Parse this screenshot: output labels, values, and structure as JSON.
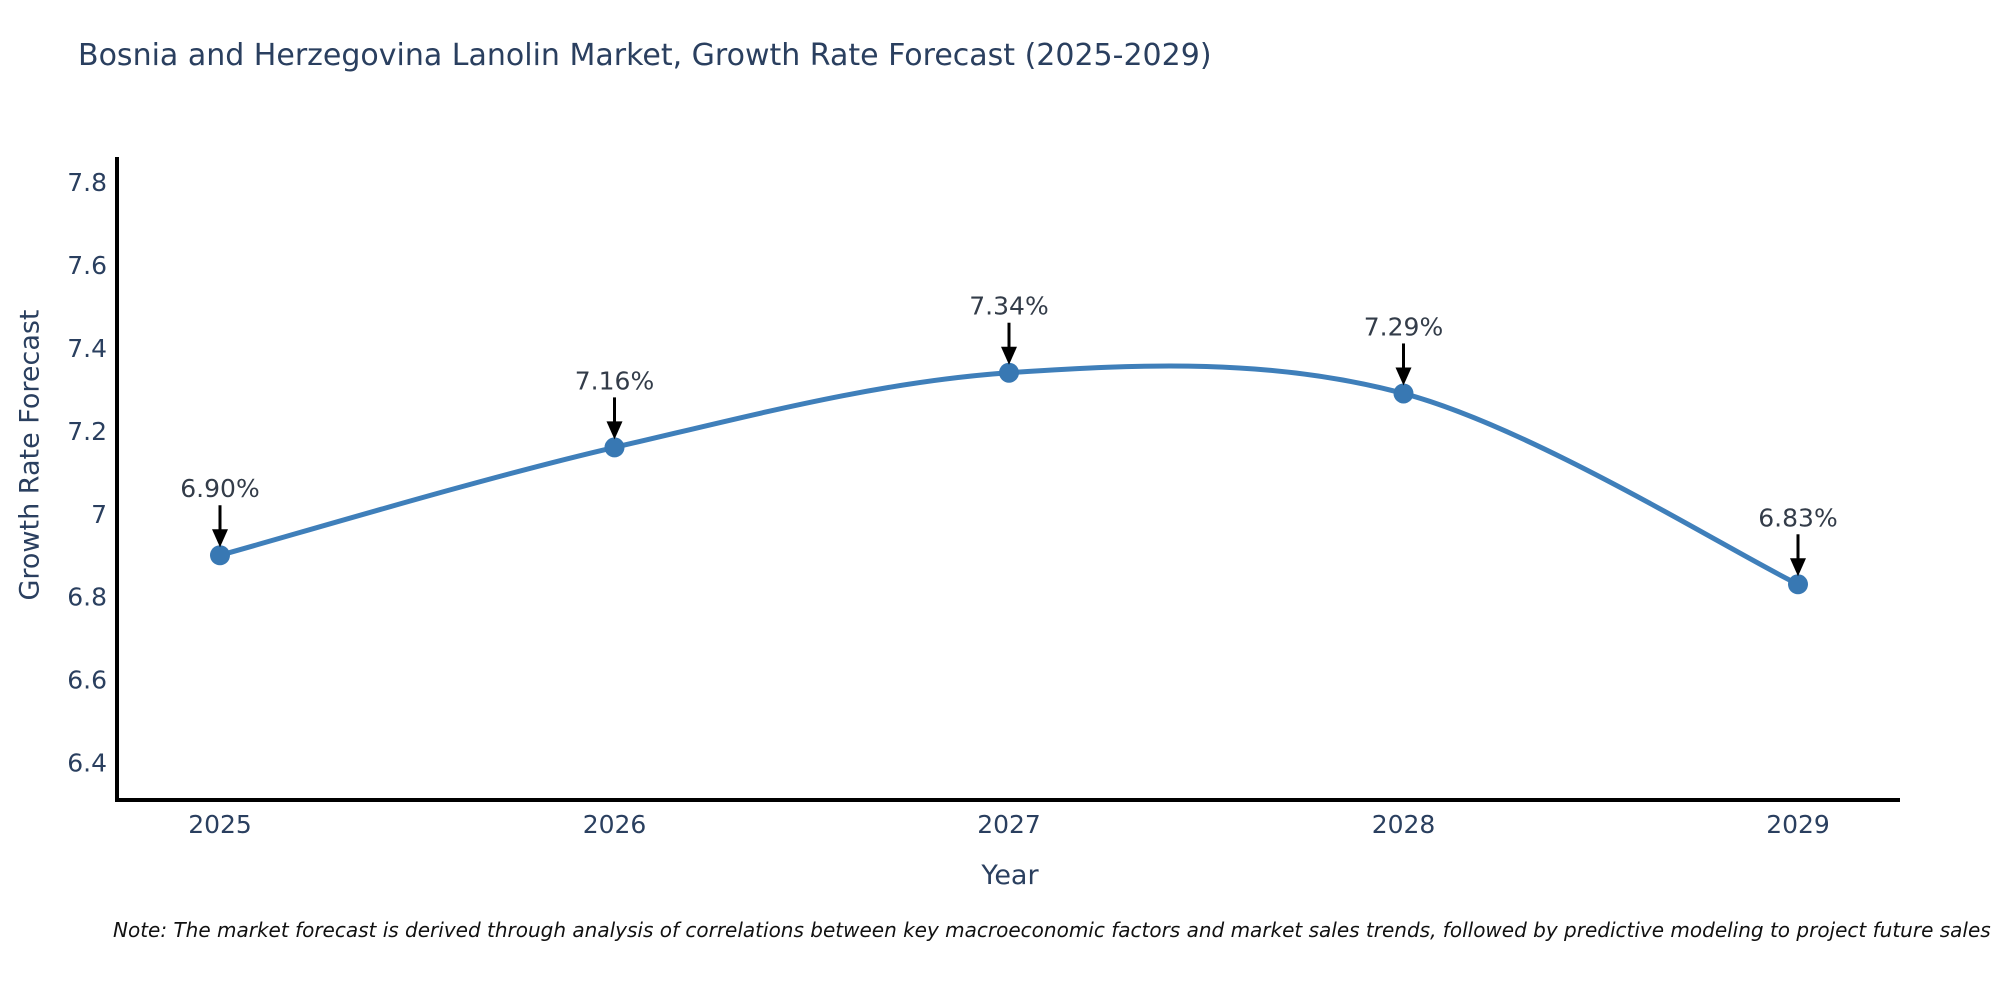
{
  "title": "Bosnia and Herzegovina Lanolin Market, Growth Rate Forecast (2025-2029)",
  "note": "Note: The market forecast is derived through analysis of correlations between key macroeconomic factors and market sales trends, followed by predictive modeling to project future sales",
  "colors": {
    "text": "#2a3f5f",
    "annotation_text": "#333c49",
    "line": "#3f7fba",
    "marker": "#3878b3",
    "axis_spine": "#000000",
    "background": "#ffffff",
    "arrow": "#000000"
  },
  "chart_data": {
    "type": "line",
    "title": "Bosnia and Herzegovina Lanolin Market, Growth Rate Forecast (2025-2029)",
    "xlabel": "Year",
    "ylabel": "Growth Rate Forecast",
    "categories": [
      "2025",
      "2026",
      "2027",
      "2028",
      "2029"
    ],
    "values": [
      6.9,
      7.16,
      7.34,
      7.29,
      6.83
    ],
    "point_labels": [
      "6.90%",
      "7.16%",
      "7.34%",
      "7.29%",
      "6.83%"
    ],
    "series": [
      {
        "name": "Growth Rate Forecast",
        "values": [
          6.9,
          7.16,
          7.34,
          7.29,
          6.83
        ]
      }
    ],
    "y_ticks": [
      6.4,
      6.6,
      6.8,
      7,
      7.2,
      7.4,
      7.6,
      7.8
    ],
    "y_tick_labels": [
      "6.4",
      "6.6",
      "6.8",
      "7",
      "7.2",
      "7.4",
      "7.6",
      "7.8"
    ],
    "ylim": [
      6.31,
      7.86
    ],
    "grid": false,
    "legend_position": "none",
    "curve": "spline",
    "annotations_with_arrows": true
  }
}
